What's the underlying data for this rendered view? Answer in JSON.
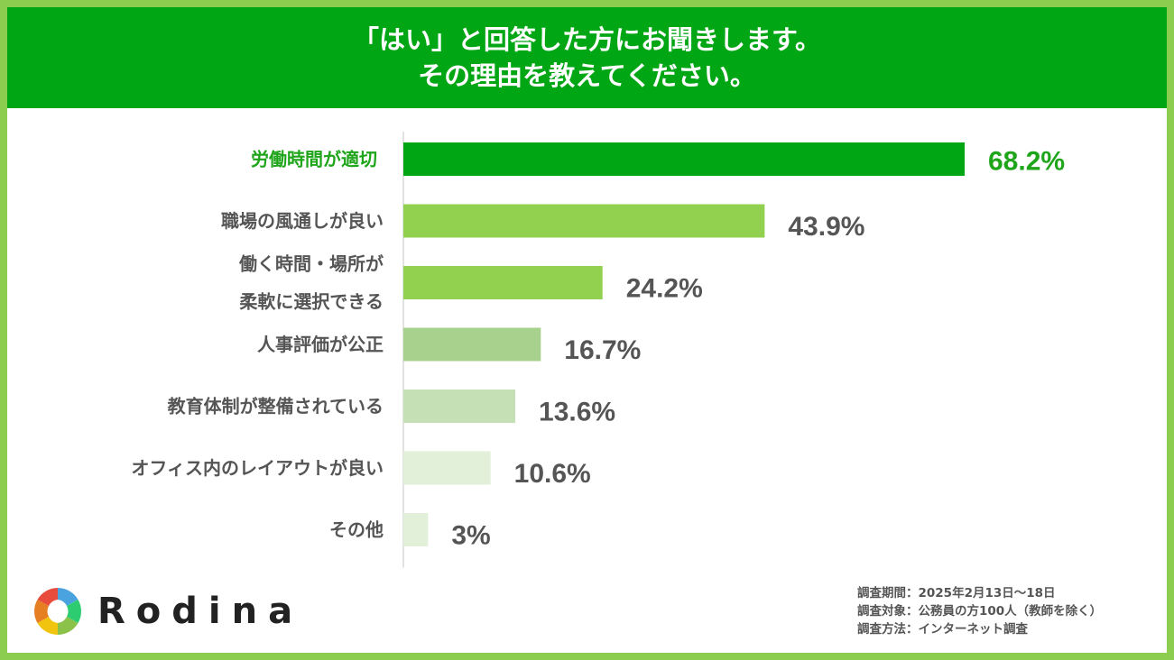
{
  "header": {
    "line1": "「はい」と回答した方にお聞きします。",
    "line2": "その理由を教えてください。"
  },
  "chart_data": {
    "type": "bar",
    "orientation": "horizontal",
    "categories": [
      [
        "労働時間が適切"
      ],
      [
        "職場の風通しが良い"
      ],
      [
        "働く時間・場所が",
        "柔軟に選択できる"
      ],
      [
        "人事評価が公正"
      ],
      [
        "教育体制が整備されている"
      ],
      [
        "オフィス内のレイアウトが良い"
      ],
      [
        "その他"
      ]
    ],
    "values": [
      68.2,
      43.9,
      24.2,
      16.7,
      13.6,
      10.6,
      3
    ],
    "value_labels": [
      "68.2%",
      "43.9%",
      "24.2%",
      "16.7%",
      "13.6%",
      "10.6%",
      "3%"
    ],
    "colors": [
      "#00a613",
      "#92d050",
      "#92d050",
      "#a9d18e",
      "#c5e0b4",
      "#e2f0d9",
      "#e2f0d9"
    ],
    "highlight_color": "#1fa51a",
    "highlight_index": 0,
    "grid": false
  },
  "logo": {
    "text": "Rodina"
  },
  "notes": {
    "period": "調査期間：2025年2月13日〜18日",
    "target": "調査対象：公務員の方100人（教師を除く）",
    "method": "調査方法：インターネット調査"
  }
}
